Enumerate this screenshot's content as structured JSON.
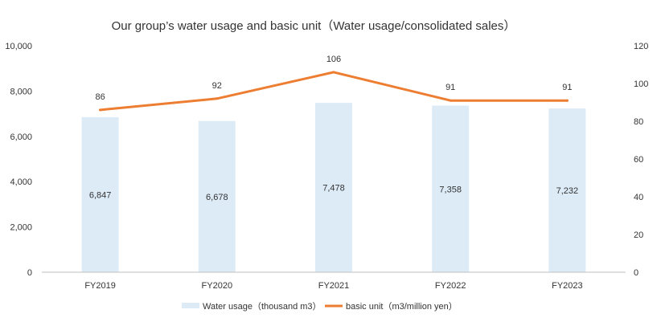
{
  "chart_data": {
    "type": "bar+line",
    "title": "Our group’s water usage and basic unit（Water usage/consolidated sales）",
    "categories": [
      "FY2019",
      "FY2020",
      "FY2021",
      "FY2022",
      "FY2023"
    ],
    "series": [
      {
        "name": "Water usage（thousand m3）",
        "type": "bar",
        "axis": "left",
        "values": [
          6847,
          6678,
          7478,
          7358,
          7232
        ],
        "labels": [
          "6,847",
          "6,678",
          "7,478",
          "7,358",
          "7,232"
        ],
        "color": "#DDEBF7"
      },
      {
        "name": "basic unit（m3/million yen）",
        "type": "line",
        "axis": "right",
        "values": [
          86,
          92,
          106,
          91,
          91
        ],
        "labels": [
          "86",
          "92",
          "106",
          "91",
          "91"
        ],
        "color": "#ED7D31"
      }
    ],
    "y_left": {
      "range": [
        0,
        10000
      ],
      "ticks": [
        0,
        2000,
        4000,
        6000,
        8000,
        10000
      ],
      "tick_labels": [
        "0",
        "2,000",
        "4,000",
        "6,000",
        "8,000",
        "10,000"
      ]
    },
    "y_right": {
      "range": [
        0,
        120
      ],
      "ticks": [
        0,
        20,
        40,
        60,
        80,
        100,
        120
      ],
      "tick_labels": [
        "0",
        "20",
        "40",
        "60",
        "80",
        "100",
        "120"
      ]
    },
    "grid": false,
    "legend": "bottom-center",
    "text_color": "#333333",
    "axis_color": "#BFBFBF"
  }
}
